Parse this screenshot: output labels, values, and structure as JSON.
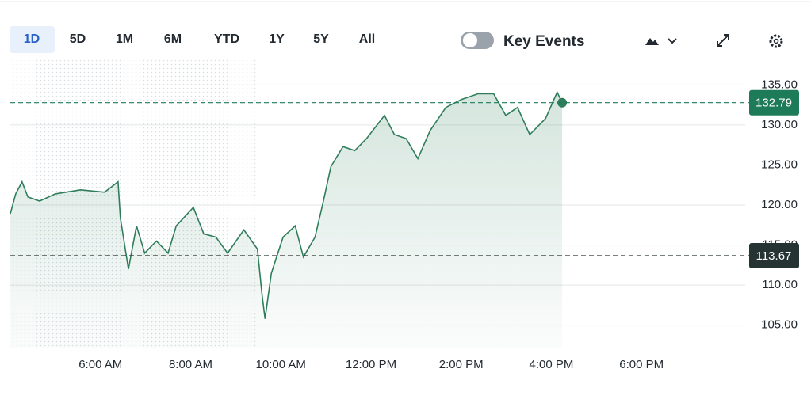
{
  "toolbar": {
    "ranges": [
      "1D",
      "5D",
      "1M",
      "6M",
      "YTD",
      "1Y",
      "5Y",
      "All"
    ],
    "key_events": "Key Events"
  },
  "chart_data": {
    "type": "line",
    "x": [
      4.0,
      4.12,
      4.26,
      4.39,
      4.65,
      5.0,
      5.56,
      6.09,
      6.39,
      6.44,
      6.62,
      6.8,
      6.98,
      7.24,
      7.5,
      7.68,
      8.06,
      8.29,
      8.56,
      8.82,
      9.18,
      9.48,
      9.58,
      9.65,
      9.79,
      10.05,
      10.32,
      10.5,
      10.76,
      10.94,
      11.11,
      11.38,
      11.64,
      11.9,
      12.3,
      12.52,
      12.78,
      13.04,
      13.31,
      13.66,
      14.01,
      14.37,
      14.72,
      14.99,
      15.25,
      15.52,
      15.87,
      16.13,
      16.24
    ],
    "series": [
      {
        "color": "#2e7d5b",
        "values": [
          118.9,
          121.4,
          122.9,
          121.0,
          120.5,
          121.4,
          121.9,
          121.6,
          122.9,
          118.4,
          112.0,
          117.4,
          114.0,
          115.5,
          114.0,
          117.4,
          119.7,
          116.4,
          116.0,
          114.0,
          116.9,
          114.5,
          109.0,
          105.8,
          111.5,
          116.0,
          117.4,
          113.5,
          116.0,
          120.4,
          124.8,
          127.3,
          126.8,
          128.3,
          131.2,
          128.8,
          128.3,
          125.8,
          129.3,
          132.2,
          133.2,
          133.9,
          133.9,
          131.2,
          132.2,
          128.8,
          130.8,
          134.1,
          132.79
        ]
      }
    ],
    "xlim": [
      4.0,
      20.3
    ],
    "xticks": [
      {
        "value": 6,
        "label": "6:00 AM"
      },
      {
        "value": 8,
        "label": "8:00 AM"
      },
      {
        "value": 10,
        "label": "10:00 AM"
      },
      {
        "value": 12,
        "label": "12:00 PM"
      },
      {
        "value": 14,
        "label": "2:00 PM"
      },
      {
        "value": 16,
        "label": "4:00 PM"
      },
      {
        "value": 18,
        "label": "6:00 PM"
      }
    ],
    "ylim": [
      102.1,
      138.2
    ],
    "yticks": [
      {
        "value": 105,
        "label": "105.00"
      },
      {
        "value": 110,
        "label": "110.00"
      },
      {
        "value": 115,
        "label": "115.00"
      },
      {
        "value": 120,
        "label": "120.00"
      },
      {
        "value": 125,
        "label": "125.00"
      },
      {
        "value": 130,
        "label": "130.00"
      },
      {
        "value": 135,
        "label": "135.00"
      }
    ],
    "premarket_end": 9.5,
    "reference_lines": [
      {
        "value": 132.79,
        "color": "#1e7b5a"
      },
      {
        "value": 113.67,
        "color": "#263333"
      }
    ],
    "grid": true
  }
}
